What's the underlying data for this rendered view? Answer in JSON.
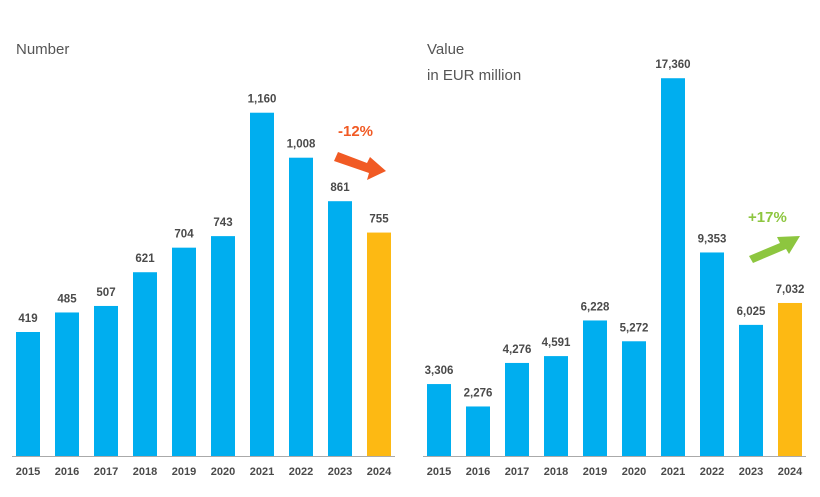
{
  "colors": {
    "bar": "#00aeef",
    "highlight": "#fdb913",
    "decrease": "#f15a24",
    "increase": "#8dc63f",
    "baseline": "#aaaaaa"
  },
  "chart_data": [
    {
      "type": "bar",
      "ylabel": "Number",
      "categories": [
        "2015",
        "2016",
        "2017",
        "2018",
        "2019",
        "2020",
        "2021",
        "2022",
        "2023",
        "2024"
      ],
      "values": [
        419,
        485,
        507,
        621,
        704,
        743,
        1160,
        1008,
        861,
        755
      ],
      "value_labels": [
        "419",
        "485",
        "507",
        "621",
        "704",
        "743",
        "1,160",
        "1,008",
        "861",
        "755"
      ],
      "highlight_category": "2024",
      "ylim": [
        0,
        1230
      ],
      "annotation": {
        "text": "-12%",
        "direction": "down"
      }
    },
    {
      "type": "bar",
      "ylabel": "Value",
      "ylabel_line2": "in EUR million",
      "categories": [
        "2015",
        "2016",
        "2017",
        "2018",
        "2019",
        "2020",
        "2021",
        "2022",
        "2023",
        "2024"
      ],
      "values": [
        3306,
        2276,
        4276,
        4591,
        6228,
        5272,
        17360,
        9353,
        6025,
        7032
      ],
      "value_labels": [
        "3,306",
        "2,276",
        "4,276",
        "4,591",
        "6,228",
        "5,272",
        "17,360",
        "9,353",
        "6,025",
        "7,032"
      ],
      "highlight_category": "2024",
      "ylim": [
        0,
        17600
      ],
      "annotation": {
        "text": "+17%",
        "direction": "up"
      }
    }
  ]
}
